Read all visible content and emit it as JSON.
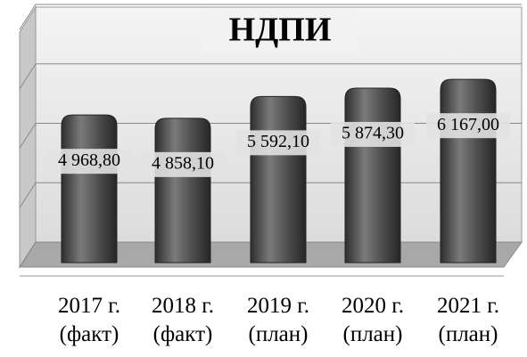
{
  "chart_data": {
    "type": "bar",
    "title": "НДПИ",
    "categories": [
      "2017 г.\n(факт)",
      "2018 г.\n(факт)",
      "2019 г.\n(план)",
      "2020 г.\n(план)",
      "2021 г.\n(план)"
    ],
    "values": [
      4968.8,
      4858.1,
      5592.1,
      5874.3,
      6167.0
    ],
    "value_labels": [
      "4 968,80",
      "4 858,10",
      "5 592,10",
      "5 874,30",
      "6 167,00"
    ],
    "color": "#555555",
    "ylim": [
      0,
      8000
    ],
    "yticks": [
      0,
      2000,
      4000,
      6000,
      8000
    ],
    "grid": true
  }
}
